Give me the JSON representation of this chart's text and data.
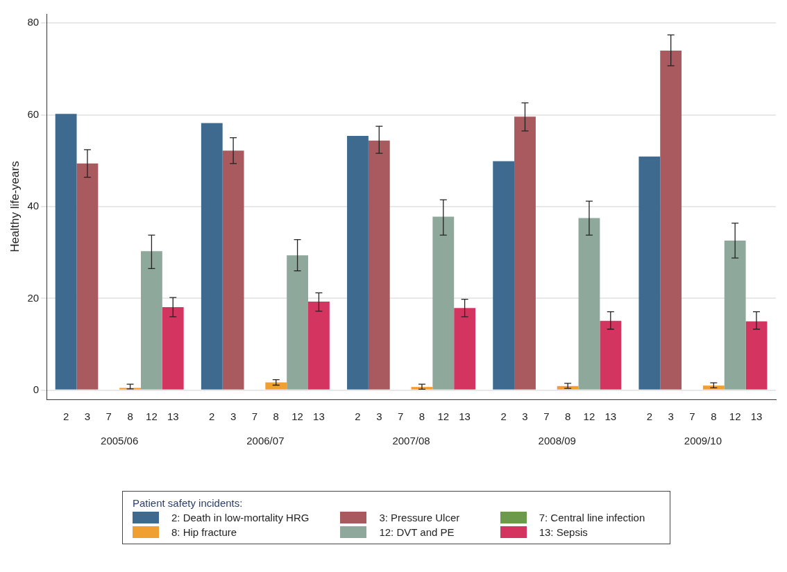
{
  "chart_data": {
    "type": "bar",
    "ylabel": "Healthy life-years",
    "legend_title": "Patient safety incidents:",
    "legend": "bottom",
    "grid": "y",
    "categories": [
      "2005/06",
      "2006/07",
      "2007/08",
      "2008/09",
      "2009/10"
    ],
    "annotations": [
      "2",
      "3",
      "7",
      "8",
      "12",
      "13"
    ],
    "ylim": [
      -2,
      82
    ],
    "yticks": [
      0,
      20,
      40,
      60,
      80
    ],
    "series": [
      {
        "name": "2: Death in low-mortality HRG",
        "color": "#3e6a8f",
        "values": [
          60.2,
          58.2,
          55.4,
          49.9,
          50.9
        ]
      },
      {
        "name": "3: Pressure Ulcer",
        "color": "#a85a5f",
        "values": [
          49.4,
          52.2,
          54.4,
          59.6,
          74.0
        ],
        "errors": [
          [
            46.4,
            52.4
          ],
          [
            49.4,
            55.0
          ],
          [
            51.6,
            57.5
          ],
          [
            56.5,
            62.6
          ],
          [
            70.7,
            77.4
          ]
        ]
      },
      {
        "name": "7: Central line infection",
        "color": "#6a9a4a",
        "values": [
          0,
          0,
          0,
          0,
          0
        ]
      },
      {
        "name": "8: Hip fracture",
        "color": "#f0a030",
        "values": [
          0.5,
          1.7,
          0.7,
          0.9,
          1.0
        ],
        "errors": [
          [
            0.3,
            1.3
          ],
          [
            1.1,
            2.3
          ],
          [
            0.2,
            1.3
          ],
          [
            0.4,
            1.5
          ],
          [
            0.5,
            1.6
          ]
        ]
      },
      {
        "name": "12: DVT and PE",
        "color": "#8fa89c",
        "values": [
          30.3,
          29.4,
          37.8,
          37.5,
          32.6
        ],
        "errors": [
          [
            26.5,
            33.8
          ],
          [
            26.0,
            32.8
          ],
          [
            33.8,
            41.5
          ],
          [
            33.8,
            41.2
          ],
          [
            28.8,
            36.4
          ]
        ]
      },
      {
        "name": "13: Sepsis",
        "color": "#d43560",
        "values": [
          18.1,
          19.3,
          17.9,
          15.1,
          15.0
        ],
        "errors": [
          [
            16.0,
            20.2
          ],
          [
            17.2,
            21.2
          ],
          [
            16.0,
            19.8
          ],
          [
            13.3,
            17.1
          ],
          [
            13.3,
            17.1
          ]
        ]
      }
    ]
  }
}
